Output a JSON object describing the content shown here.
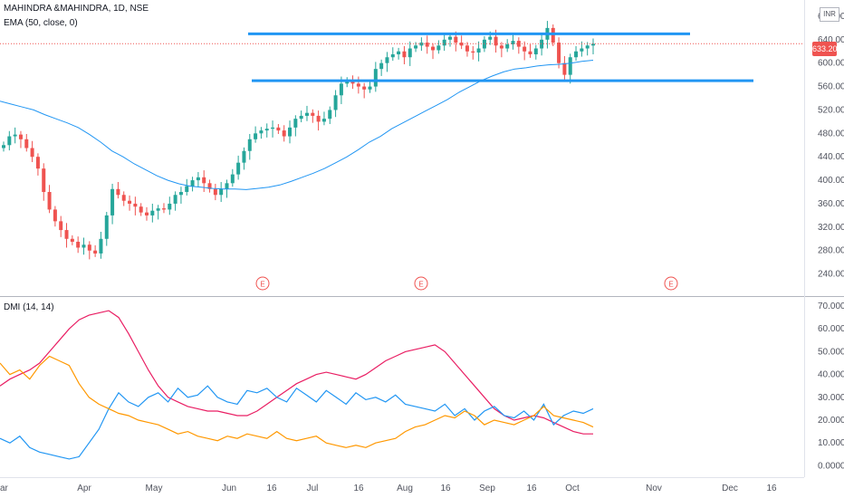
{
  "header": {
    "symbol": "MAHINDRA &MAHINDRA, 1D, NSE",
    "ema_label": "EMA (50, close, 0)",
    "dmi_label": "DMI (14, 14)",
    "currency": "INR",
    "current_price": "633.20"
  },
  "earnings_marker": "E",
  "chart_data": [
    {
      "type": "candlestick",
      "x_ticks": [
        "ar",
        "Apr",
        "May",
        "Jun",
        "16",
        "Jul",
        "16",
        "Aug",
        "16",
        "Sep",
        "16",
        "Oct",
        "Nov",
        "Dec",
        "16"
      ],
      "y_ticks": [
        "240.00",
        "280.00",
        "320.00",
        "360.00",
        "400.00",
        "440.00",
        "480.00",
        "520.00",
        "560.00",
        "600.00",
        "640.00",
        "680.00"
      ],
      "ylim": [
        210,
        700
      ],
      "current_price": 633.2,
      "candle_closes": [
        460,
        475,
        478,
        470,
        455,
        440,
        420,
        380,
        350,
        330,
        315,
        300,
        295,
        285,
        290,
        280,
        275,
        300,
        340,
        385,
        375,
        365,
        360,
        355,
        345,
        340,
        348,
        352,
        350,
        360,
        375,
        380,
        390,
        400,
        405,
        395,
        385,
        375,
        385,
        395,
        410,
        430,
        450,
        470,
        480,
        485,
        488,
        490,
        485,
        475,
        490,
        505,
        510,
        515,
        510,
        500,
        505,
        520,
        545,
        565,
        570,
        565,
        560,
        555,
        560,
        590,
        600,
        610,
        615,
        620,
        610,
        625,
        630,
        635,
        628,
        622,
        630,
        640,
        645,
        635,
        630,
        620,
        618,
        625,
        640,
        645,
        630,
        625,
        632,
        638,
        628,
        620,
        615,
        625,
        640,
        660,
        635,
        600,
        580,
        610,
        620,
        625,
        630,
        633
      ],
      "ema_50": [
        535,
        530,
        525,
        520,
        512,
        505,
        498,
        490,
        478,
        465,
        450,
        440,
        428,
        418,
        408,
        400,
        394,
        390,
        388,
        386,
        385,
        385,
        384,
        386,
        388,
        392,
        398,
        405,
        412,
        420,
        430,
        440,
        452,
        465,
        475,
        488,
        498,
        508,
        518,
        528,
        538,
        550,
        560,
        570,
        578,
        585,
        590,
        592,
        595,
        597,
        598,
        600,
        603,
        605
      ],
      "resistance_line": 650,
      "support_line": 570,
      "earnings_events": 3
    },
    {
      "type": "line",
      "y_ticks": [
        "0.0000",
        "10.0000",
        "20.0000",
        "30.0000",
        "40.0000",
        "50.0000",
        "60.0000",
        "70.0000"
      ],
      "ylim": [
        -3,
        72
      ],
      "series": [
        {
          "color": "#e91e63",
          "values": [
            35,
            38,
            40,
            42,
            45,
            50,
            55,
            60,
            64,
            66,
            67,
            68,
            65,
            58,
            50,
            42,
            35,
            30,
            28,
            26,
            25,
            24,
            24,
            23,
            22,
            22,
            24,
            27,
            30,
            33,
            36,
            38,
            40,
            41,
            40,
            39,
            38,
            40,
            43,
            46,
            48,
            50,
            51,
            52,
            53,
            50,
            45,
            40,
            35,
            30,
            25,
            22,
            20,
            21,
            22,
            21,
            19,
            17,
            15,
            14,
            14
          ]
        },
        {
          "color": "#2196f3",
          "values": [
            12,
            10,
            13,
            8,
            6,
            5,
            4,
            3,
            4,
            10,
            16,
            25,
            32,
            28,
            26,
            30,
            32,
            28,
            34,
            30,
            31,
            35,
            30,
            28,
            27,
            33,
            32,
            34,
            30,
            28,
            34,
            31,
            28,
            33,
            30,
            27,
            32,
            29,
            30,
            28,
            31,
            27,
            26,
            25,
            24,
            27,
            22,
            25,
            20,
            24,
            26,
            22,
            21,
            24,
            20,
            27,
            18,
            22,
            24,
            23,
            25
          ]
        },
        {
          "color": "#ff9800",
          "values": [
            45,
            40,
            42,
            38,
            44,
            48,
            46,
            44,
            36,
            30,
            27,
            25,
            23,
            22,
            20,
            19,
            18,
            16,
            14,
            15,
            13,
            12,
            11,
            13,
            12,
            14,
            13,
            12,
            15,
            12,
            11,
            12,
            13,
            10,
            9,
            8,
            9,
            8,
            10,
            11,
            12,
            15,
            17,
            18,
            20,
            22,
            21,
            24,
            22,
            18,
            20,
            19,
            18,
            20,
            22,
            26,
            22,
            21,
            20,
            19,
            17
          ]
        }
      ]
    }
  ],
  "colors": {
    "up_candle": "#26a69a",
    "down_candle": "#ef5350",
    "ema": "#2196f3",
    "hline": "#2196f3",
    "price_line": "#ef5350"
  }
}
